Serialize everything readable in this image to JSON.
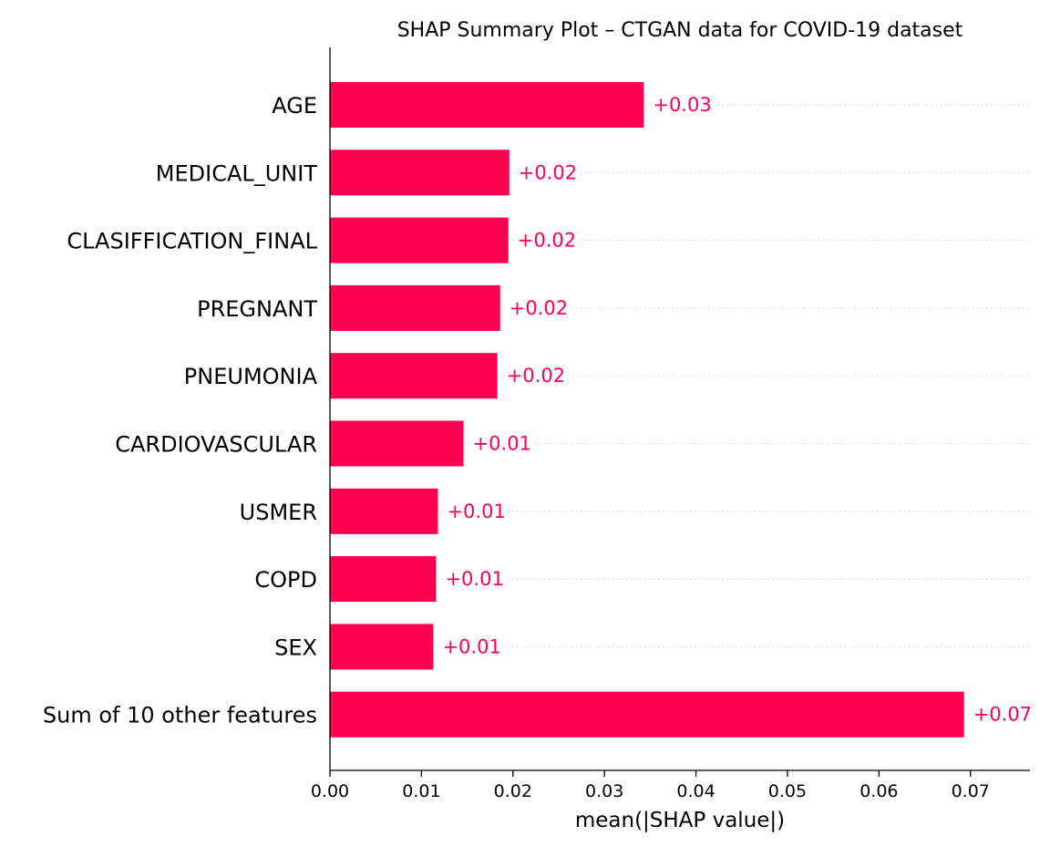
{
  "chart_data": {
    "type": "bar",
    "orientation": "horizontal",
    "title": "SHAP Summary Plot – CTGAN data for COVID-19 dataset",
    "xlabel": "mean(|SHAP value|)",
    "ylabel": "",
    "categories": [
      "AGE",
      "MEDICAL_UNIT",
      "CLASIFFICATION_FINAL",
      "PREGNANT",
      "PNEUMONIA",
      "CARDIOVASCULAR",
      "USMER",
      "COPD",
      "SEX",
      "Sum of 10 other features"
    ],
    "values": [
      0.0343,
      0.0196,
      0.0195,
      0.0186,
      0.0183,
      0.0146,
      0.0118,
      0.0116,
      0.0113,
      0.0693
    ],
    "value_labels": [
      "+0.03",
      "+0.02",
      "+0.02",
      "+0.02",
      "+0.02",
      "+0.01",
      "+0.01",
      "+0.01",
      "+0.01",
      "+0.07"
    ],
    "xlim": [
      0,
      0.0765
    ],
    "xticks": [
      0.0,
      0.01,
      0.02,
      0.03,
      0.04,
      0.05,
      0.06,
      0.07
    ],
    "xtick_labels": [
      "0.00",
      "0.01",
      "0.02",
      "0.03",
      "0.04",
      "0.05",
      "0.06",
      "0.07"
    ],
    "grid": "horizontal dotted lines per bar",
    "legend": "none",
    "colors": {
      "bar": "#ff0051",
      "value_label": "#ff0051",
      "text": "#000000",
      "axis": "#000000",
      "gridline": "#cccccc"
    }
  }
}
